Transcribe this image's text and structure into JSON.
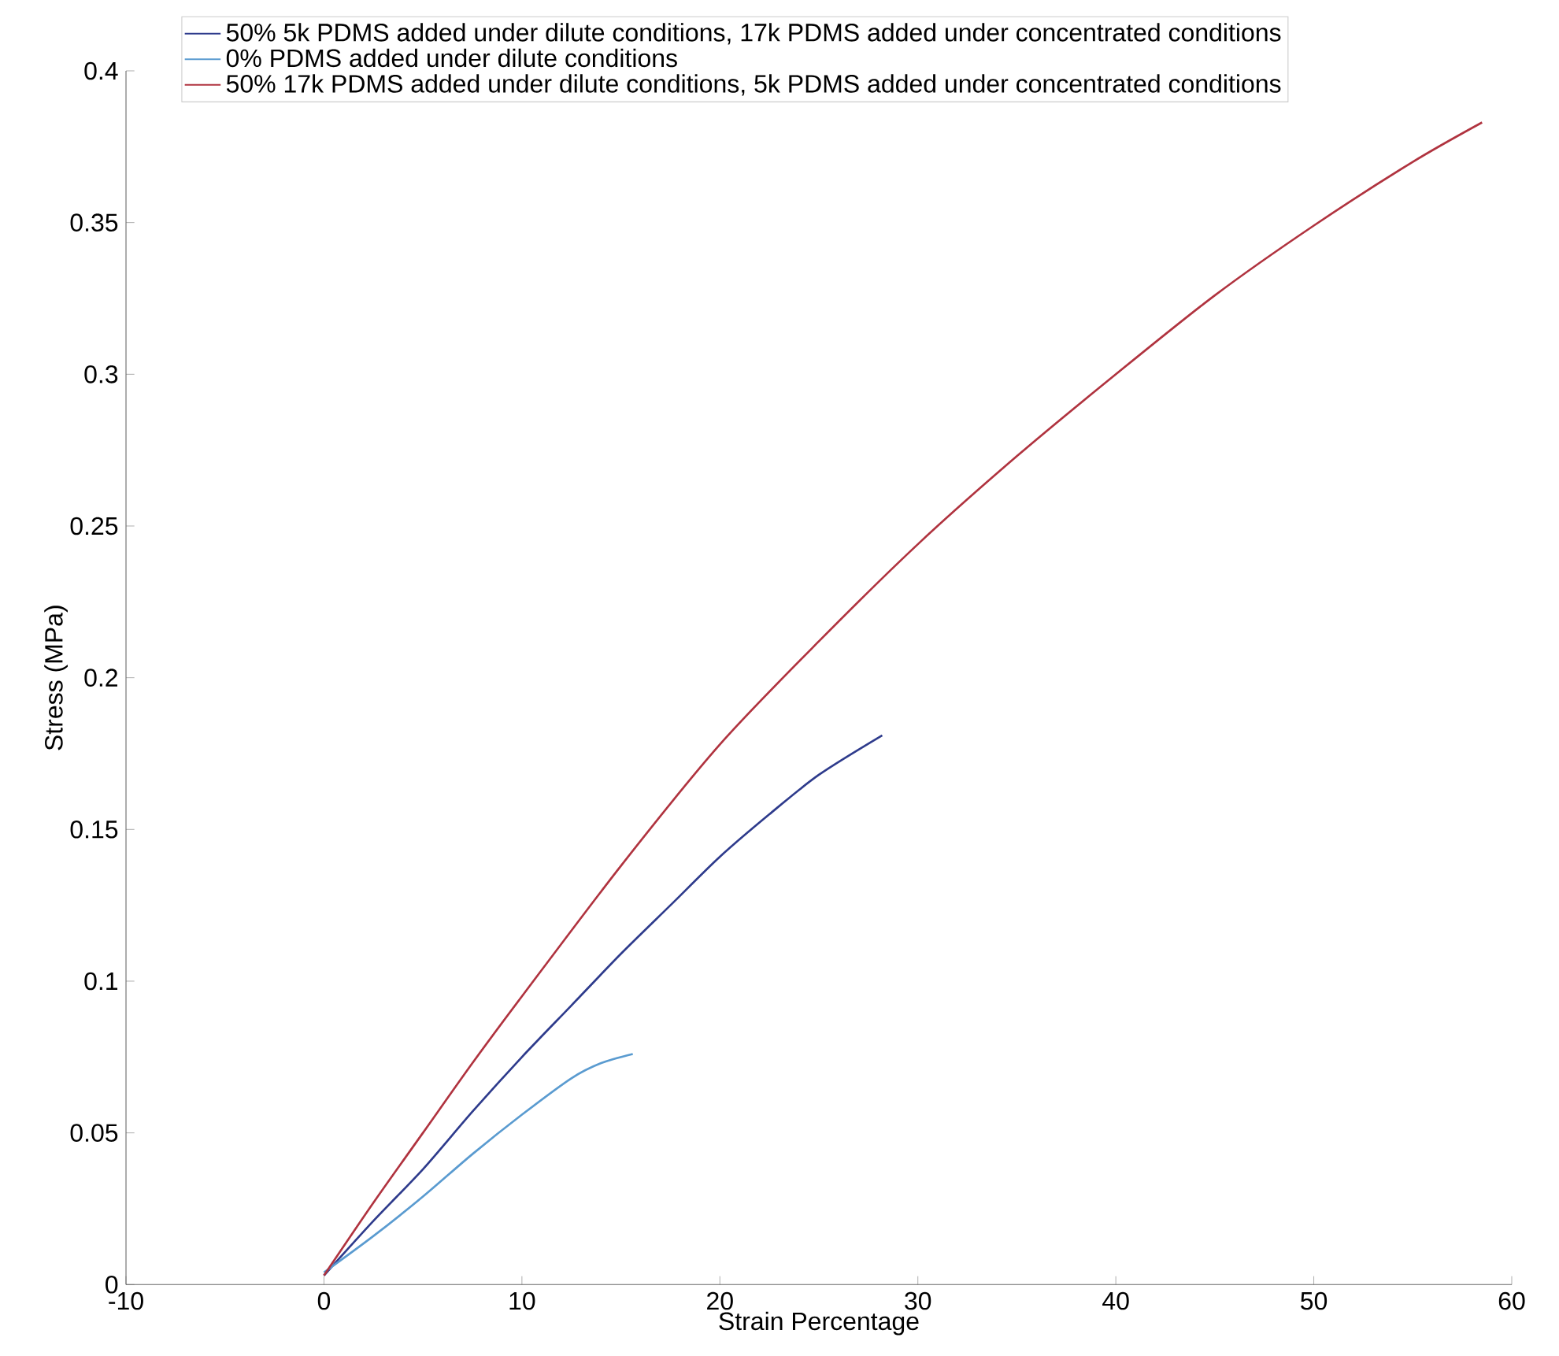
{
  "chart_data": {
    "type": "line",
    "xlabel": "Strain Percentage",
    "ylabel": "Stress (MPa)",
    "xlim": [
      -10,
      60
    ],
    "ylim": [
      0,
      0.4
    ],
    "xticks": [
      -10,
      0,
      10,
      20,
      30,
      40,
      50,
      60
    ],
    "yticks": [
      0,
      0.05,
      0.1,
      0.15,
      0.2,
      0.25,
      0.3,
      0.35,
      0.4
    ],
    "legend": "top",
    "grid": false,
    "series": [
      {
        "name": "50% 5k PDMS added under dilute conditions, 17k PDMS added under concentrated conditions",
        "color": "#2e3b8c",
        "x": [
          0,
          2.5,
          5,
          7.5,
          10,
          12.5,
          15,
          17.5,
          20,
          22.5,
          25,
          28.2
        ],
        "values": [
          0.003,
          0.021,
          0.038,
          0.057,
          0.075,
          0.092,
          0.109,
          0.125,
          0.141,
          0.155,
          0.168,
          0.181
        ]
      },
      {
        "name": "0% PDMS added under dilute conditions",
        "color": "#5a9bd0",
        "x": [
          0,
          2.5,
          5,
          7.5,
          10,
          12.5,
          14,
          15.6
        ],
        "values": [
          0.004,
          0.016,
          0.029,
          0.043,
          0.056,
          0.068,
          0.073,
          0.076
        ]
      },
      {
        "name": "50% 17k PDMS added under dilute conditions, 5k PDMS added under concentrated conditions",
        "color": "#b0333f",
        "x": [
          0,
          2.5,
          5,
          7.5,
          10,
          15,
          20,
          25,
          30,
          35,
          40,
          45,
          50,
          55,
          58.5
        ],
        "values": [
          0.003,
          0.027,
          0.05,
          0.073,
          0.095,
          0.138,
          0.178,
          0.212,
          0.244,
          0.273,
          0.3,
          0.326,
          0.349,
          0.37,
          0.383
        ]
      }
    ]
  }
}
